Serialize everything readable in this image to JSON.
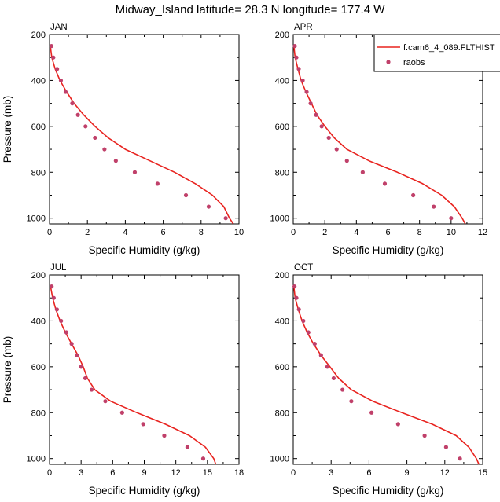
{
  "chart_data": {
    "title": "Midway_Island  latitude= 28.3 N longitude= 177.4 W",
    "type": "line",
    "legend": {
      "position": "top-right",
      "items": [
        {
          "label": "f.cam6_4_089.FLTHIST",
          "kind": "line",
          "color": "#e8231f"
        },
        {
          "label": "raobs",
          "kind": "marker",
          "color": "#c0406a"
        }
      ]
    },
    "panels": [
      {
        "label": "JAN",
        "xlabel": "Specific Humidity (g/kg)",
        "ylabel": "Pressure (mb)",
        "xlim": [
          0,
          10
        ],
        "xticks": [
          0,
          2,
          4,
          6,
          8,
          10
        ],
        "ylim": [
          1025,
          200
        ],
        "yticks": [
          200,
          400,
          600,
          800,
          1000
        ],
        "model": {
          "name": "f.cam6_4_089.FLTHIST",
          "q": [
            0.04,
            0.12,
            0.3,
            0.55,
            0.9,
            1.3,
            1.8,
            2.4,
            3.1,
            4.0,
            5.3,
            6.6,
            7.7,
            8.6,
            9.2,
            9.5,
            9.7
          ],
          "p": [
            250,
            300,
            350,
            400,
            450,
            500,
            550,
            600,
            650,
            700,
            750,
            800,
            850,
            900,
            950,
            1000,
            1025
          ]
        },
        "raobs": {
          "q": [
            0.1,
            0.2,
            0.4,
            0.6,
            0.85,
            1.2,
            1.5,
            1.9,
            2.4,
            2.9,
            3.5,
            4.5,
            5.7,
            7.2,
            8.4,
            9.3
          ],
          "p": [
            250,
            300,
            350,
            400,
            450,
            500,
            550,
            600,
            650,
            700,
            750,
            800,
            850,
            900,
            950,
            1000
          ]
        }
      },
      {
        "label": "APR",
        "xlabel": "Specific Humidity (g/kg)",
        "ylabel": "",
        "xlim": [
          0,
          12
        ],
        "xticks": [
          0,
          2,
          4,
          6,
          8,
          10,
          12
        ],
        "ylim": [
          1025,
          200
        ],
        "yticks": [
          200,
          400,
          600,
          800,
          1000
        ],
        "model": {
          "name": "f.cam6_4_089.FLTHIST",
          "q": [
            0.04,
            0.12,
            0.3,
            0.5,
            0.8,
            1.15,
            1.5,
            2.0,
            2.6,
            3.4,
            4.8,
            6.6,
            8.2,
            9.4,
            10.2,
            10.7,
            10.9
          ],
          "p": [
            250,
            300,
            350,
            400,
            450,
            500,
            550,
            600,
            650,
            700,
            750,
            800,
            850,
            900,
            950,
            1000,
            1025
          ]
        },
        "raobs": {
          "q": [
            0.1,
            0.2,
            0.35,
            0.6,
            0.85,
            1.1,
            1.45,
            1.8,
            2.25,
            2.75,
            3.4,
            4.4,
            5.8,
            7.6,
            8.9,
            10.0
          ],
          "p": [
            250,
            300,
            350,
            400,
            450,
            500,
            550,
            600,
            650,
            700,
            750,
            800,
            850,
            900,
            950,
            1000
          ]
        }
      },
      {
        "label": "JUL",
        "xlabel": "Specific Humidity (g/kg)",
        "ylabel": "Pressure (mb)",
        "xlim": [
          0,
          18
        ],
        "xticks": [
          0,
          3,
          6,
          9,
          12,
          15,
          18
        ],
        "ylim": [
          1025,
          200
        ],
        "yticks": [
          200,
          400,
          600,
          800,
          1000
        ],
        "model": {
          "name": "f.cam6_4_089.FLTHIST",
          "q": [
            0.1,
            0.3,
            0.6,
            1.0,
            1.5,
            2.1,
            2.7,
            3.2,
            3.6,
            4.3,
            5.8,
            8.3,
            11.0,
            13.3,
            14.8,
            15.6,
            15.8
          ],
          "p": [
            250,
            300,
            350,
            400,
            450,
            500,
            550,
            600,
            650,
            700,
            750,
            800,
            850,
            900,
            950,
            1000,
            1025
          ]
        },
        "raobs": {
          "q": [
            0.2,
            0.4,
            0.7,
            1.1,
            1.6,
            2.1,
            2.6,
            3.0,
            3.4,
            4.0,
            5.3,
            6.9,
            8.9,
            10.9,
            13.1,
            14.6
          ],
          "p": [
            250,
            300,
            350,
            400,
            450,
            500,
            550,
            600,
            650,
            700,
            750,
            800,
            850,
            900,
            950,
            1000
          ]
        }
      },
      {
        "label": "OCT",
        "xlabel": "Specific Humidity (g/kg)",
        "ylabel": "",
        "xlim": [
          0,
          15
        ],
        "xticks": [
          0,
          3,
          6,
          9,
          12,
          15
        ],
        "ylim": [
          1025,
          200
        ],
        "yticks": [
          200,
          400,
          600,
          800,
          1000
        ],
        "model": {
          "name": "f.cam6_4_089.FLTHIST",
          "q": [
            0.05,
            0.15,
            0.4,
            0.7,
            1.1,
            1.6,
            2.2,
            2.9,
            3.6,
            4.6,
            6.3,
            8.6,
            11.0,
            12.9,
            13.9,
            14.5,
            14.7
          ],
          "p": [
            250,
            300,
            350,
            400,
            450,
            500,
            550,
            600,
            650,
            700,
            750,
            800,
            850,
            900,
            950,
            1000,
            1025
          ]
        },
        "raobs": {
          "q": [
            0.1,
            0.25,
            0.45,
            0.8,
            1.2,
            1.7,
            2.2,
            2.7,
            3.2,
            3.9,
            4.6,
            6.2,
            8.3,
            10.4,
            12.1,
            13.2
          ],
          "p": [
            250,
            300,
            350,
            400,
            450,
            500,
            550,
            600,
            650,
            700,
            750,
            800,
            850,
            900,
            950,
            1000
          ]
        }
      }
    ]
  }
}
